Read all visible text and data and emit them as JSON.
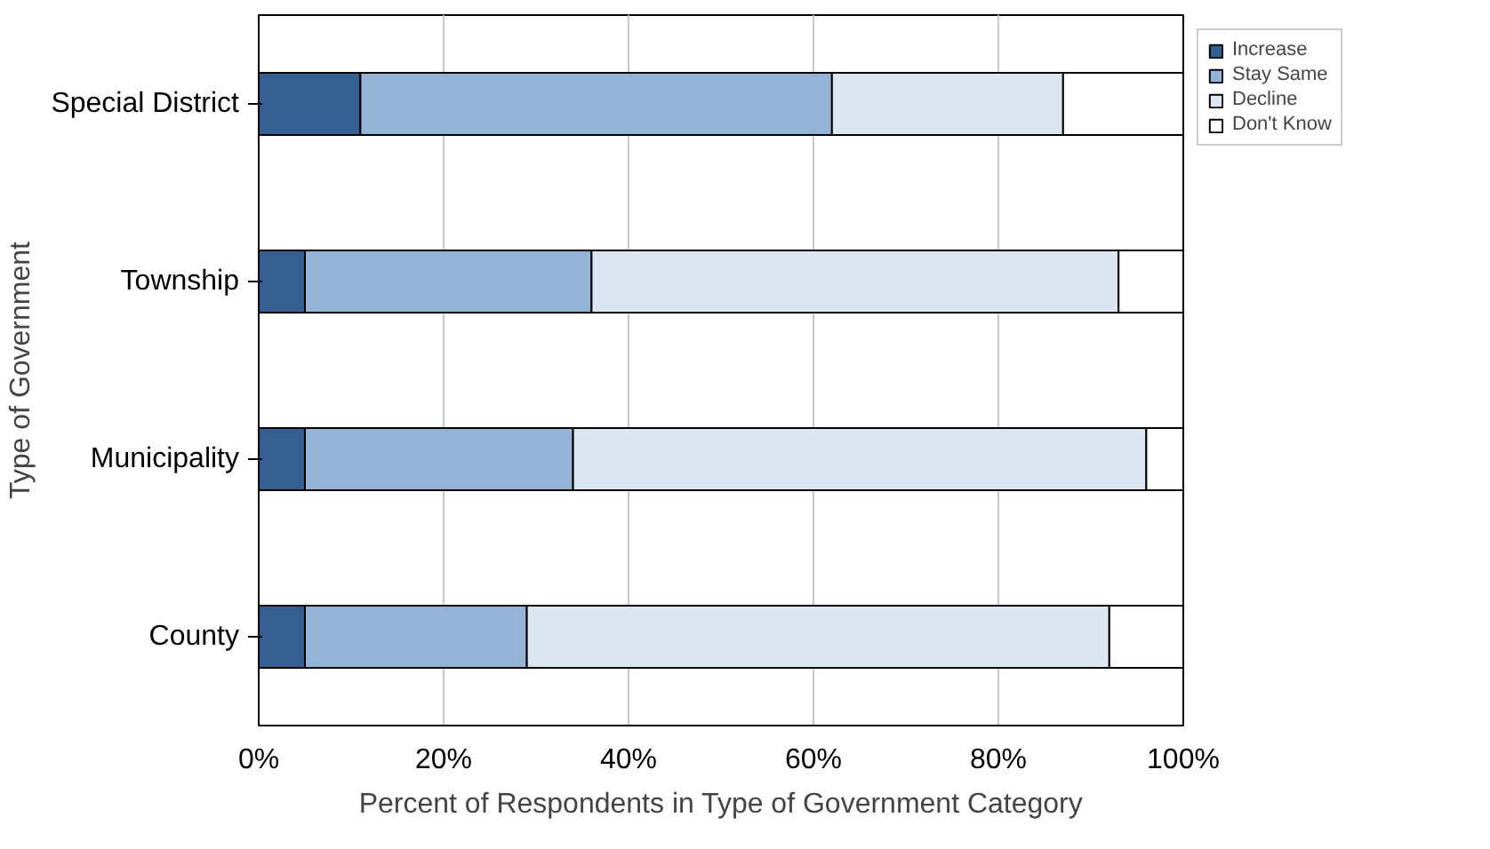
{
  "chart_data": {
    "type": "bar",
    "orientation": "horizontal",
    "stacked": true,
    "xlabel": "Percent of Respondents in Type of Government Category",
    "ylabel": "Type of Government",
    "categories": [
      "Special District",
      "Township",
      "Municipality",
      "County"
    ],
    "series": [
      {
        "name": "Increase",
        "color": "#365f91",
        "values": [
          11,
          5,
          5,
          5
        ]
      },
      {
        "name": "Stay Same",
        "color": "#95b3d7",
        "values": [
          51,
          31,
          29,
          24
        ]
      },
      {
        "name": "Decline",
        "color": "#dce6f2",
        "values": [
          25,
          57,
          62,
          63
        ]
      },
      {
        "name": "Don't Know",
        "color": "#ffffff",
        "values": [
          13,
          7,
          4,
          8
        ]
      }
    ],
    "xlim": [
      0,
      100
    ],
    "xticks": [
      {
        "value": 0,
        "label": "0%"
      },
      {
        "value": 20,
        "label": "20%"
      },
      {
        "value": 40,
        "label": "40%"
      },
      {
        "value": 60,
        "label": "60%"
      },
      {
        "value": 80,
        "label": "80%"
      },
      {
        "value": 100,
        "label": "100%"
      }
    ],
    "grid": "x",
    "legend": "top right"
  }
}
